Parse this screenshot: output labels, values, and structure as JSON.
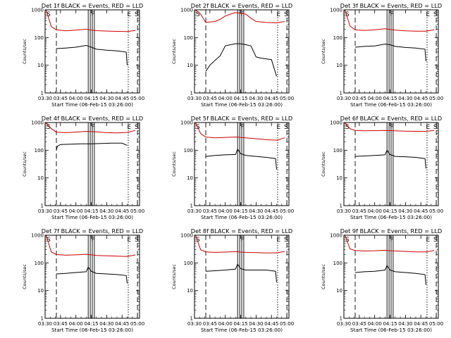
{
  "figure": {
    "rows": 3,
    "cols": 3,
    "colors": {
      "events": "#000000",
      "lld": "#cc0000",
      "axes": "#000000",
      "background": "#ffffff"
    },
    "time_axis": {
      "title": "Start Time (06-Feb-15 03:26:00)",
      "tick_labels": [
        "03:30",
        "03:45",
        "04:00",
        "04:15",
        "04:30",
        "04:45",
        "05:00"
      ],
      "tick_minutes": [
        30,
        45,
        60,
        75,
        90,
        105,
        120
      ],
      "xlim_minutes": [
        30,
        122
      ]
    },
    "y_axis": {
      "label": "Counts/sec",
      "scale": "log",
      "ylim": [
        1,
        1000
      ],
      "tick_labels": [
        "1",
        "10",
        "100",
        "1000"
      ]
    },
    "markers": {
      "S": 31,
      "F_lines": [
        72,
        74,
        76,
        78
      ],
      "F": 77,
      "E_dotted": 111,
      "E": 112,
      "S_dashed": 41,
      "E_dashed": 120
    }
  },
  "chart_data": [
    {
      "type": "line",
      "title": "Det 1f BLACK = Events, RED = LLD",
      "marker_labels": [
        "S",
        "F",
        "E",
        "S"
      ],
      "series": [
        {
          "name": "Events",
          "x": [
            41,
            50,
            60,
            70,
            75,
            80,
            90,
            100,
            109,
            110
          ],
          "y": [
            40,
            42,
            45,
            52,
            45,
            38,
            35,
            33,
            30,
            10
          ]
        },
        {
          "name": "LLD",
          "x": [
            31,
            36,
            41,
            50,
            60,
            70,
            75,
            80,
            90,
            100,
            110,
            118
          ],
          "y": [
            1000,
            250,
            190,
            175,
            185,
            200,
            185,
            178,
            172,
            168,
            165,
            180
          ]
        }
      ]
    },
    {
      "type": "line",
      "title": "Det 2f BLACK = Events, RED = LLD",
      "marker_labels": [
        "S",
        "F",
        "E",
        "S"
      ],
      "series": [
        {
          "name": "Events",
          "x": [
            41,
            45,
            50,
            55,
            60,
            65,
            70,
            75,
            80,
            85,
            90,
            95,
            100,
            105,
            110
          ],
          "y": [
            6,
            10,
            15,
            22,
            50,
            55,
            60,
            60,
            55,
            50,
            20,
            18,
            17,
            16,
            4
          ]
        },
        {
          "name": "LLD",
          "x": [
            31,
            36,
            41,
            50,
            55,
            60,
            65,
            70,
            75,
            80,
            85,
            90,
            100,
            110,
            118
          ],
          "y": [
            1000,
            700,
            350,
            380,
            450,
            600,
            700,
            800,
            750,
            700,
            500,
            380,
            350,
            340,
            380
          ]
        }
      ]
    },
    {
      "type": "line",
      "title": "Det 3f BLACK = Events, RED = LLD",
      "marker_labels": [
        "S",
        "F",
        "E",
        "S"
      ],
      "series": [
        {
          "name": "Events",
          "x": [
            41,
            50,
            60,
            70,
            75,
            80,
            90,
            100,
            109,
            110
          ],
          "y": [
            45,
            48,
            50,
            58,
            55,
            48,
            44,
            42,
            38,
            14
          ]
        },
        {
          "name": "LLD",
          "x": [
            31,
            36,
            41,
            50,
            60,
            70,
            75,
            80,
            90,
            100,
            110,
            118
          ],
          "y": [
            1000,
            260,
            190,
            180,
            190,
            210,
            195,
            185,
            175,
            170,
            170,
            190
          ]
        }
      ]
    },
    {
      "type": "line",
      "title": "Det 4f BLACK = Events, RED = LLD",
      "marker_labels": [
        "S",
        "F",
        "E",
        "S"
      ],
      "series": [
        {
          "name": "Events",
          "x": [
            41,
            42,
            45,
            55,
            65,
            75,
            85,
            95,
            105,
            110
          ],
          "y": [
            100,
            140,
            160,
            165,
            170,
            170,
            175,
            180,
            180,
            150
          ]
        },
        {
          "name": "LLD",
          "x": [
            31,
            36,
            41,
            50,
            60,
            70,
            75,
            80,
            90,
            100,
            110,
            118
          ],
          "y": [
            1000,
            600,
            450,
            430,
            450,
            480,
            470,
            460,
            430,
            420,
            440,
            520
          ]
        }
      ]
    },
    {
      "type": "line",
      "title": "Det 5f BLACK = Events, RED = LLD",
      "marker_labels": [
        "S",
        "F",
        "E",
        "S"
      ],
      "series": [
        {
          "name": "Events",
          "x": [
            41,
            50,
            60,
            70,
            72,
            75,
            80,
            90,
            100,
            109,
            110
          ],
          "y": [
            60,
            65,
            68,
            70,
            110,
            75,
            65,
            60,
            55,
            50,
            20
          ]
        },
        {
          "name": "LLD",
          "x": [
            31,
            36,
            41,
            50,
            60,
            70,
            75,
            80,
            90,
            100,
            110,
            118
          ],
          "y": [
            1000,
            400,
            300,
            280,
            290,
            300,
            290,
            280,
            260,
            240,
            230,
            280
          ]
        }
      ]
    },
    {
      "type": "line",
      "title": "Det 6f BLACK = Events, RED = LLD",
      "marker_labels": [
        "S",
        "F",
        "E",
        "S"
      ],
      "series": [
        {
          "name": "Events",
          "x": [
            41,
            50,
            60,
            70,
            72,
            75,
            80,
            90,
            100,
            109,
            110
          ],
          "y": [
            60,
            62,
            65,
            68,
            100,
            70,
            60,
            58,
            55,
            50,
            22
          ]
        },
        {
          "name": "LLD",
          "x": [
            31,
            36,
            41,
            50,
            60,
            70,
            75,
            80,
            90,
            100,
            110,
            118
          ],
          "y": [
            1000,
            600,
            520,
            500,
            510,
            520,
            510,
            500,
            490,
            480,
            480,
            520
          ]
        }
      ]
    },
    {
      "type": "line",
      "title": "Det 7f BLACK = Events, RED = LLD",
      "marker_labels": [
        "S",
        "F",
        "E",
        "S"
      ],
      "series": [
        {
          "name": "Events",
          "x": [
            41,
            50,
            60,
            70,
            72,
            75,
            80,
            90,
            100,
            109,
            110
          ],
          "y": [
            40,
            42,
            45,
            48,
            70,
            50,
            42,
            40,
            38,
            35,
            18
          ]
        },
        {
          "name": "LLD",
          "x": [
            31,
            36,
            41,
            50,
            60,
            70,
            75,
            80,
            90,
            100,
            110,
            118
          ],
          "y": [
            1000,
            250,
            200,
            190,
            195,
            205,
            195,
            185,
            180,
            175,
            170,
            195
          ]
        }
      ]
    },
    {
      "type": "line",
      "title": "Det 8f BLACK = Events, RED = LLD",
      "marker_labels": [
        "S",
        "F",
        "E",
        "S"
      ],
      "series": [
        {
          "name": "Events",
          "x": [
            41,
            50,
            60,
            70,
            72,
            75,
            80,
            90,
            100,
            109,
            110
          ],
          "y": [
            50,
            52,
            55,
            60,
            90,
            62,
            55,
            55,
            55,
            50,
            20
          ]
        },
        {
          "name": "LLD",
          "x": [
            31,
            36,
            41,
            50,
            60,
            70,
            75,
            80,
            90,
            100,
            110,
            118
          ],
          "y": [
            1000,
            300,
            250,
            240,
            245,
            255,
            245,
            240,
            235,
            230,
            230,
            260
          ]
        }
      ]
    },
    {
      "type": "line",
      "title": "Det 9f BLACK = Events, RED = LLD",
      "marker_labels": [
        "S",
        "F",
        "E",
        "S"
      ],
      "series": [
        {
          "name": "Events",
          "x": [
            41,
            50,
            60,
            70,
            72,
            75,
            80,
            90,
            100,
            109,
            110
          ],
          "y": [
            45,
            48,
            50,
            55,
            80,
            55,
            48,
            45,
            42,
            38,
            16
          ]
        },
        {
          "name": "LLD",
          "x": [
            31,
            36,
            41,
            50,
            60,
            70,
            75,
            80,
            90,
            100,
            110,
            118
          ],
          "y": [
            1000,
            320,
            280,
            270,
            275,
            285,
            275,
            270,
            260,
            250,
            250,
            280
          ]
        }
      ]
    }
  ]
}
